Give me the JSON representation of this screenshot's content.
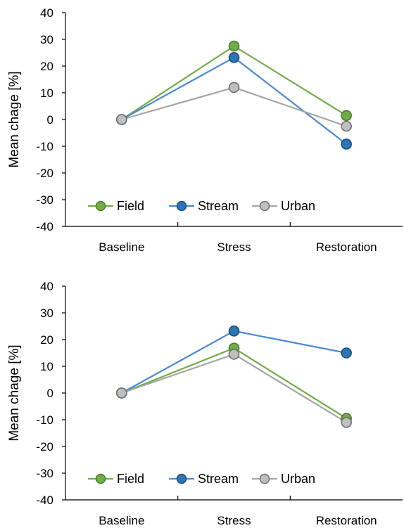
{
  "chart_data": [
    {
      "type": "line",
      "categories": [
        "Baseline",
        "Stress",
        "Restoration"
      ],
      "ylabel": "Mean chage [%]",
      "ylim": [
        -40,
        40
      ],
      "yticks": [
        40,
        30,
        20,
        10,
        0,
        -10,
        -20,
        -30,
        -40
      ],
      "grid": false,
      "legend_position": "bottom-left",
      "series": [
        {
          "name": "Field",
          "values": [
            0,
            27.5,
            1.5
          ],
          "color": "#70ad47"
        },
        {
          "name": "Stream",
          "values": [
            0,
            23.2,
            -9.2
          ],
          "color": "#4a8ad0"
        },
        {
          "name": "Urban",
          "values": [
            0,
            12.0,
            -2.5
          ],
          "color": "#a5a5a5"
        }
      ]
    },
    {
      "type": "line",
      "categories": [
        "Baseline",
        "Stress",
        "Restoration"
      ],
      "ylabel": "Mean chage [%]",
      "ylim": [
        -40,
        40
      ],
      "yticks": [
        40,
        30,
        20,
        10,
        0,
        -10,
        -20,
        -30,
        -40
      ],
      "grid": false,
      "legend_position": "bottom-left",
      "series": [
        {
          "name": "Field",
          "values": [
            0,
            16.8,
            -9.5
          ],
          "color": "#70ad47"
        },
        {
          "name": "Stream",
          "values": [
            0,
            23.2,
            15.0
          ],
          "color": "#4a8ad0"
        },
        {
          "name": "Urban",
          "values": [
            0,
            14.5,
            -11.0
          ],
          "color": "#a5a5a5"
        }
      ]
    }
  ],
  "marker_styles": {
    "Field": {
      "fill": "#70ad47",
      "stroke": "#4e7a31"
    },
    "Stream": {
      "fill": "#2e75b6",
      "stroke": "#1f4e79"
    },
    "Urban": {
      "fill": "#bfbfbf",
      "stroke": "#6f6f6f"
    }
  }
}
